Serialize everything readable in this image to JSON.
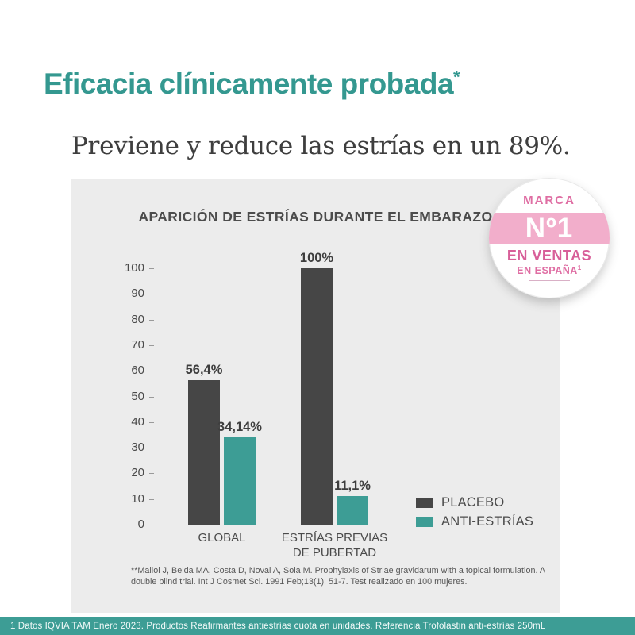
{
  "header": {
    "title": "Eficacia clínicamente probada",
    "title_mark": "*"
  },
  "subtitle": "Previene y reduce las estrías en un 89%.",
  "badge": {
    "line1": "MARCA",
    "line2": "Nº1",
    "line3": "EN VENTAS",
    "line4": "EN ESPAÑA",
    "line4_sup": "1"
  },
  "chart_data": {
    "type": "bar",
    "title": "APARICIÓN DE ESTRÍAS DURANTE EL EMBARAZO",
    "categories": [
      [
        "GLOBAL"
      ],
      [
        "ESTRÍAS PREVIAS",
        "DE PUBERTAD"
      ]
    ],
    "series": [
      {
        "name": "PLACEBO",
        "color": "#464646",
        "values": [
          56.4,
          100
        ],
        "labels": [
          "56,4%",
          "100%"
        ]
      },
      {
        "name": "ANTI-ESTRÍAS",
        "color": "#3d9d95",
        "values": [
          34.14,
          11.1
        ],
        "labels": [
          "34,14%",
          "11,1%"
        ]
      }
    ],
    "ylim": [
      0,
      100
    ],
    "yticks": [
      0,
      10,
      20,
      30,
      40,
      50,
      60,
      70,
      80,
      90,
      100
    ],
    "grid": false,
    "legend_position": "bottom-right",
    "xlabel": "",
    "ylabel": ""
  },
  "footnote": "**Mallol J, Belda MA, Costa D, Noval A, Sola M. Prophylaxis of Striae gravidarum with a topical formulation. A double blind trial. Int J Cosmet Sci. 1991 Feb;13(1): 51-7. Test realizado en 100 mujeres.",
  "bottom_bar": {
    "text": "1 Datos IQVIA TAM Enero 2023. Productos Reafirmantes antiestrías cuota en unidades. Referencia Trofolastin anti-estrías 250mL"
  },
  "colors": {
    "title_teal": "#349890",
    "bar_dark": "#464646",
    "bar_teal": "#3d9d95",
    "panel_bg": "#ececec",
    "badge_band_pink": "#f2aecb",
    "badge_text_pink": "#df6ea3",
    "strip_teal": "#3d9d95"
  }
}
